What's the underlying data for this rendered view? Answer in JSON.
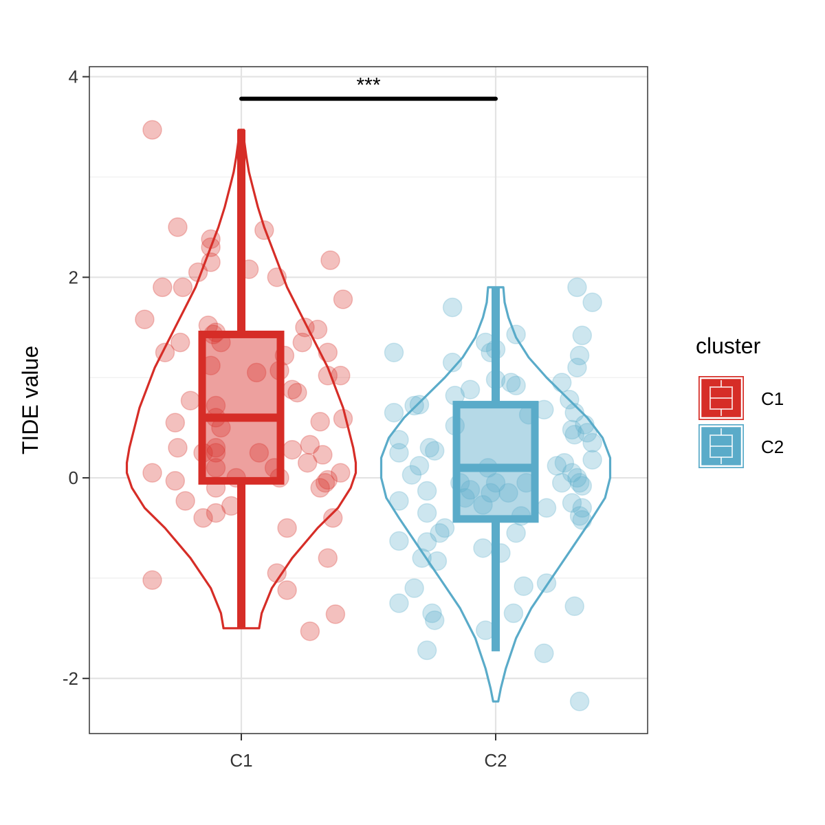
{
  "chart_data": {
    "type": "violin",
    "title": "",
    "xlabel": "",
    "ylabel": "TIDE value",
    "ylim": [
      -2.55,
      4.1
    ],
    "yticks": [
      -2,
      0,
      2,
      4
    ],
    "ytick_labels": [
      "-2",
      "0",
      "2",
      "4"
    ],
    "categories": [
      "C1",
      "C2"
    ],
    "legend": {
      "title": "cluster",
      "position": "right",
      "entries": [
        "C1",
        "C2"
      ]
    },
    "significance": {
      "label": "***",
      "from": "C1",
      "to": "C2",
      "y": 3.78
    },
    "series": [
      {
        "name": "C1",
        "color": "#d62d27",
        "box": {
          "q1": -0.03,
          "median": 0.6,
          "q3": 1.43,
          "whisker_low": -1.5,
          "whisker_high": 3.47
        },
        "violin": {
          "y": [
            -1.5,
            -1.35,
            -1.1,
            -0.8,
            -0.5,
            -0.3,
            -0.1,
            0.05,
            0.15,
            0.3,
            0.5,
            0.7,
            0.9,
            1.1,
            1.3,
            1.5,
            1.7,
            1.9,
            2.1,
            2.3,
            2.5,
            2.7,
            2.9,
            3.05,
            3.2,
            3.35,
            3.47
          ],
          "width": [
            0.07,
            0.08,
            0.12,
            0.2,
            0.3,
            0.38,
            0.43,
            0.45,
            0.45,
            0.44,
            0.42,
            0.4,
            0.37,
            0.34,
            0.3,
            0.26,
            0.22,
            0.18,
            0.15,
            0.12,
            0.09,
            0.065,
            0.045,
            0.03,
            0.02,
            0.012,
            0.01
          ]
        },
        "points": [
          [
            -0.35,
            3.47
          ],
          [
            -0.25,
            2.5
          ],
          [
            -0.17,
            2.05
          ],
          [
            -0.31,
            1.9
          ],
          [
            -0.23,
            1.9
          ],
          [
            -0.38,
            1.58
          ],
          [
            -0.13,
            1.52
          ],
          [
            -0.24,
            1.35
          ],
          [
            -0.3,
            1.25
          ],
          [
            -0.2,
            0.77
          ],
          [
            -0.26,
            0.55
          ],
          [
            -0.25,
            0.3
          ],
          [
            -0.35,
            0.05
          ],
          [
            -0.26,
            -0.03
          ],
          [
            -0.22,
            -0.23
          ],
          [
            -0.15,
            -0.4
          ],
          [
            -0.1,
            -0.35
          ],
          [
            -0.04,
            -0.28
          ],
          [
            -0.35,
            -1.02
          ],
          [
            -0.12,
            2.38
          ],
          [
            -0.12,
            2.3
          ],
          [
            -0.12,
            2.15
          ],
          [
            0.03,
            2.08
          ],
          [
            0.09,
            2.47
          ],
          [
            0.14,
            2.0
          ],
          [
            0.35,
            2.17
          ],
          [
            0.4,
            1.78
          ],
          [
            -0.11,
            1.43
          ],
          [
            -0.1,
            1.45
          ],
          [
            -0.08,
            1.35
          ],
          [
            -0.12,
            1.12
          ],
          [
            -0.1,
            0.72
          ],
          [
            -0.1,
            0.6
          ],
          [
            -0.08,
            0.5
          ],
          [
            -0.1,
            0.3
          ],
          [
            -0.1,
            0.25
          ],
          [
            -0.15,
            0.25
          ],
          [
            -0.1,
            0.1
          ],
          [
            -0.1,
            -0.1
          ],
          [
            -0.02,
            0.0
          ],
          [
            0.07,
            0.25
          ],
          [
            0.13,
            0.1
          ],
          [
            0.15,
            0.0
          ],
          [
            0.17,
            1.22
          ],
          [
            0.15,
            1.07
          ],
          [
            0.06,
            1.05
          ],
          [
            0.2,
            0.88
          ],
          [
            0.22,
            0.85
          ],
          [
            0.2,
            0.28
          ],
          [
            0.27,
            0.33
          ],
          [
            0.24,
            1.35
          ],
          [
            0.25,
            1.5
          ],
          [
            0.3,
            1.48
          ],
          [
            0.34,
            1.25
          ],
          [
            0.34,
            1.02
          ],
          [
            0.39,
            1.02
          ],
          [
            0.31,
            0.56
          ],
          [
            0.4,
            0.59
          ],
          [
            0.32,
            0.23
          ],
          [
            0.26,
            0.15
          ],
          [
            0.39,
            0.05
          ],
          [
            0.34,
            -0.02
          ],
          [
            0.33,
            -0.05
          ],
          [
            0.31,
            -0.1
          ],
          [
            0.36,
            -0.4
          ],
          [
            0.18,
            -0.5
          ],
          [
            0.14,
            -0.95
          ],
          [
            0.18,
            -1.12
          ],
          [
            0.34,
            -0.8
          ],
          [
            0.37,
            -1.36
          ],
          [
            0.27,
            -1.53
          ]
        ]
      },
      {
        "name": "C2",
        "color": "#5aabc9",
        "box": {
          "q1": -0.41,
          "median": 0.1,
          "q3": 0.73,
          "whisker_low": -1.73,
          "whisker_high": 1.9
        },
        "violin": {
          "y": [
            -2.23,
            -2.1,
            -1.9,
            -1.6,
            -1.3,
            -1.0,
            -0.7,
            -0.4,
            -0.2,
            0.0,
            0.2,
            0.4,
            0.6,
            0.8,
            1.0,
            1.2,
            1.4,
            1.6,
            1.75,
            1.9
          ],
          "width": [
            0.01,
            0.02,
            0.04,
            0.08,
            0.14,
            0.22,
            0.3,
            0.38,
            0.43,
            0.45,
            0.45,
            0.42,
            0.36,
            0.28,
            0.2,
            0.13,
            0.08,
            0.05,
            0.035,
            0.03
          ]
        },
        "points": [
          [
            -0.4,
            1.25
          ],
          [
            -0.17,
            1.7
          ],
          [
            -0.17,
            1.15
          ],
          [
            -0.1,
            0.88
          ],
          [
            -0.16,
            0.82
          ],
          [
            -0.4,
            0.65
          ],
          [
            -0.32,
            0.72
          ],
          [
            -0.3,
            0.73
          ],
          [
            -0.16,
            0.52
          ],
          [
            -0.38,
            0.38
          ],
          [
            -0.38,
            0.25
          ],
          [
            -0.3,
            0.12
          ],
          [
            -0.33,
            0.03
          ],
          [
            -0.26,
            0.3
          ],
          [
            -0.24,
            0.27
          ],
          [
            -0.27,
            -0.13
          ],
          [
            -0.38,
            -0.23
          ],
          [
            -0.27,
            -0.35
          ],
          [
            -0.2,
            -0.5
          ],
          [
            -0.22,
            -0.55
          ],
          [
            -0.38,
            -0.63
          ],
          [
            -0.27,
            -0.64
          ],
          [
            -0.29,
            -0.8
          ],
          [
            -0.23,
            -0.83
          ],
          [
            -0.32,
            -1.1
          ],
          [
            -0.38,
            -1.25
          ],
          [
            -0.25,
            -1.35
          ],
          [
            -0.24,
            -1.42
          ],
          [
            -0.27,
            -1.72
          ],
          [
            -0.14,
            -0.05
          ],
          [
            -0.12,
            -0.2
          ],
          [
            -0.1,
            -0.12
          ],
          [
            -0.05,
            -0.27
          ],
          [
            0.0,
            -0.05
          ],
          [
            -0.03,
            0.1
          ],
          [
            -0.02,
            -0.15
          ],
          [
            -0.04,
            1.35
          ],
          [
            -0.02,
            1.25
          ],
          [
            0.0,
            1.28
          ],
          [
            0.0,
            0.98
          ],
          [
            0.06,
            0.95
          ],
          [
            0.08,
            0.92
          ],
          [
            0.08,
            1.43
          ],
          [
            0.13,
            0.63
          ],
          [
            0.19,
            0.68
          ],
          [
            0.26,
            0.95
          ],
          [
            0.29,
            0.78
          ],
          [
            0.31,
            0.65
          ],
          [
            0.3,
            0.48
          ],
          [
            0.35,
            0.53
          ],
          [
            0.27,
            0.15
          ],
          [
            0.24,
            0.12
          ],
          [
            0.3,
            0.05
          ],
          [
            0.26,
            -0.05
          ],
          [
            0.12,
            -0.05
          ],
          [
            0.05,
            -0.15
          ],
          [
            0.1,
            -0.38
          ],
          [
            0.08,
            -0.55
          ],
          [
            0.2,
            -0.3
          ],
          [
            0.3,
            -0.25
          ],
          [
            0.31,
            0.43
          ],
          [
            0.36,
            0.45
          ],
          [
            0.38,
            0.35
          ],
          [
            0.38,
            0.18
          ],
          [
            0.32,
            0.0
          ],
          [
            0.33,
            -0.05
          ],
          [
            0.34,
            -0.08
          ],
          [
            0.34,
            -0.3
          ],
          [
            0.33,
            -0.38
          ],
          [
            0.34,
            -0.42
          ],
          [
            0.31,
            -1.28
          ],
          [
            0.33,
            -2.23
          ],
          [
            0.32,
            1.9
          ],
          [
            0.38,
            1.75
          ],
          [
            0.34,
            1.42
          ],
          [
            0.33,
            1.22
          ],
          [
            0.32,
            1.1
          ],
          [
            -0.04,
            -1.52
          ],
          [
            0.02,
            -0.75
          ],
          [
            -0.05,
            -0.7
          ],
          [
            0.07,
            -1.35
          ],
          [
            0.11,
            -1.08
          ],
          [
            0.2,
            -1.05
          ],
          [
            0.19,
            -1.75
          ]
        ]
      }
    ]
  }
}
